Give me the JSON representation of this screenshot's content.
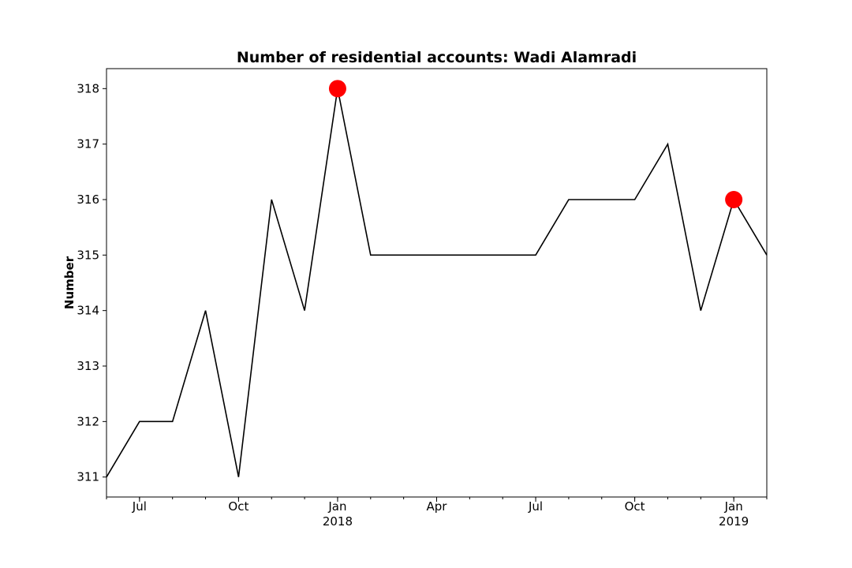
{
  "chart_data": {
    "type": "line",
    "title": "Number of residential accounts: Wadi Alamradi",
    "xlabel": "",
    "ylabel": "Number",
    "x": [
      "2017-06",
      "2017-07",
      "2017-08",
      "2017-09",
      "2017-10",
      "2017-11",
      "2017-12",
      "2018-01",
      "2018-02",
      "2018-03",
      "2018-04",
      "2018-05",
      "2018-06",
      "2018-07",
      "2018-08",
      "2018-09",
      "2018-10",
      "2018-11",
      "2018-12",
      "2019-01",
      "2019-02"
    ],
    "series": [
      {
        "values": [
          311,
          312,
          312,
          314,
          311,
          316,
          314,
          318,
          315,
          315,
          315,
          315,
          315,
          315,
          316,
          316,
          316,
          317,
          314,
          316,
          315
        ],
        "color": "#000000"
      }
    ],
    "highlight_points": [
      {
        "x": "2018-01",
        "y": 318,
        "color": "#ff0000"
      },
      {
        "x": "2019-01",
        "y": 316,
        "color": "#ff0000"
      }
    ],
    "xlim": [
      "2017-06",
      "2019-02"
    ],
    "ylim": [
      310.64,
      318.36
    ],
    "yticks": [
      311,
      312,
      313,
      314,
      315,
      316,
      317,
      318
    ],
    "xticks_major": [
      {
        "x": "2017-07",
        "label": "Jul",
        "sublabel": ""
      },
      {
        "x": "2017-10",
        "label": "Oct",
        "sublabel": ""
      },
      {
        "x": "2018-01",
        "label": "Jan",
        "sublabel": "2018"
      },
      {
        "x": "2018-04",
        "label": "Apr",
        "sublabel": ""
      },
      {
        "x": "2018-07",
        "label": "Jul",
        "sublabel": ""
      },
      {
        "x": "2018-10",
        "label": "Oct",
        "sublabel": ""
      },
      {
        "x": "2019-01",
        "label": "Jan",
        "sublabel": "2019"
      }
    ],
    "grid": false,
    "legend": "none"
  }
}
